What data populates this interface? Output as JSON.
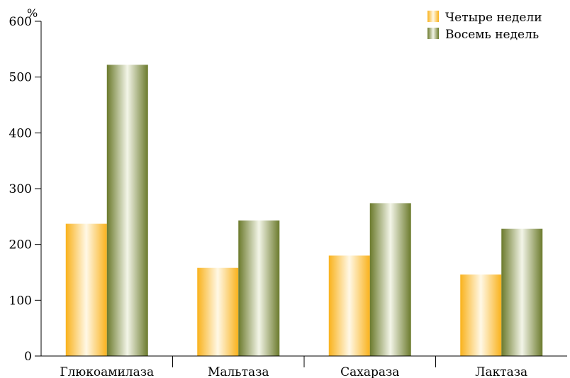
{
  "chart_data": {
    "type": "bar",
    "ylabel": "%",
    "ylim": [
      0,
      600
    ],
    "yticks": [
      0,
      100,
      200,
      300,
      400,
      500,
      600
    ],
    "categories": [
      "Глюкоамилаза",
      "Мальтаза",
      "Сахараза",
      "Лактаза"
    ],
    "series": [
      {
        "name": "Четыре недели",
        "values": [
          237,
          158,
          180,
          146
        ]
      },
      {
        "name": "Восемь недель",
        "values": [
          522,
          243,
          274,
          228
        ]
      }
    ],
    "legend_position": "top-right",
    "grid": false,
    "colors": {
      "series0_edge": "#f9b21c",
      "series0_center": "#fff8e6",
      "series1_edge": "#6b7a2c",
      "series1_center": "#f3f5e8"
    }
  }
}
